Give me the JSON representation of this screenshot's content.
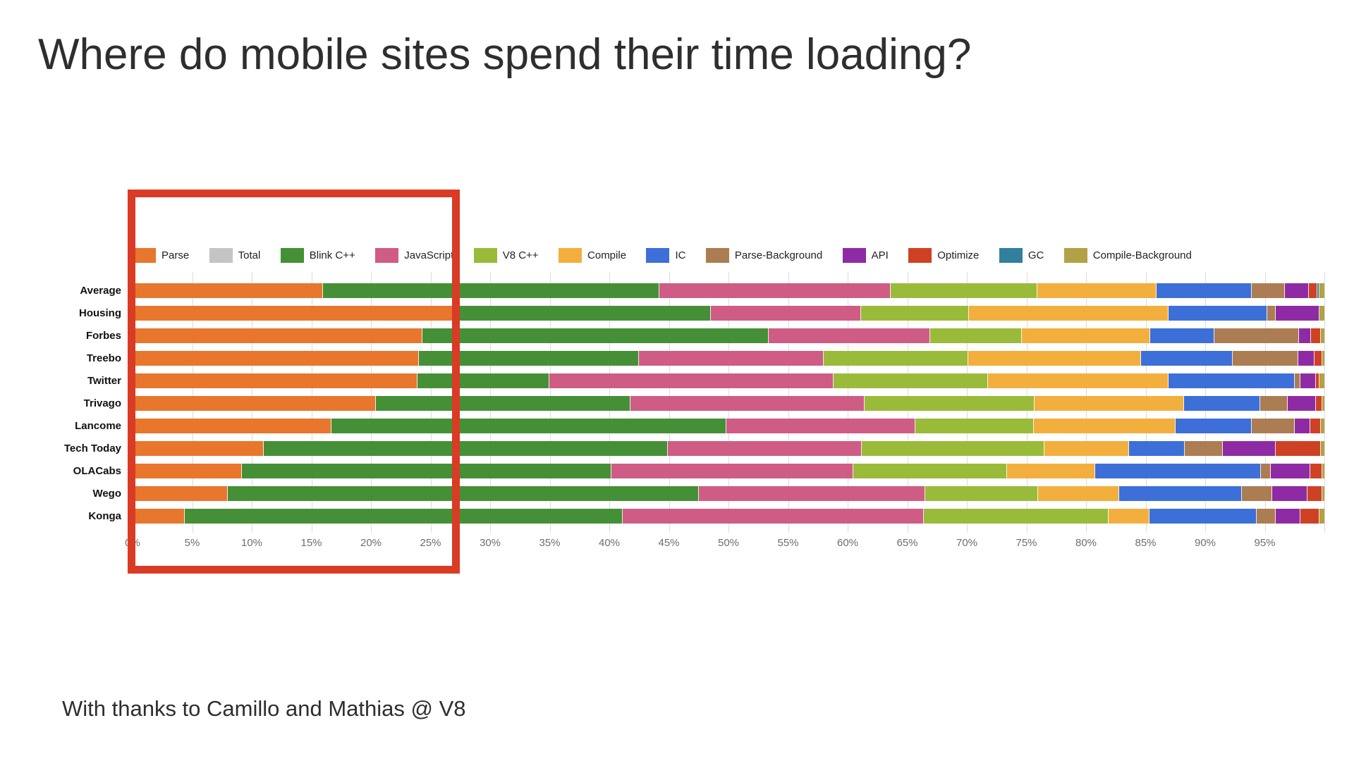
{
  "title": "Where do mobile sites spend their time loading?",
  "footer": "With thanks to Camillo and Mathias @ V8",
  "highlight_box": {
    "color": "#D93B25",
    "x_start_pct": 0,
    "x_end_pct": 27.4
  },
  "chart_data": {
    "type": "bar",
    "variant": "horizontal-100pct-stacked",
    "title": "",
    "xlabel": "",
    "ylabel": "",
    "xlim": [
      0,
      100
    ],
    "grid": true,
    "legend_position": "top",
    "x_ticks": [
      "0%",
      "5%",
      "10%",
      "15%",
      "20%",
      "25%",
      "30%",
      "35%",
      "40%",
      "45%",
      "50%",
      "55%",
      "60%",
      "65%",
      "70%",
      "75%",
      "80%",
      "85%",
      "90%",
      "95%"
    ],
    "categories": [
      "Average",
      "Housing",
      "Forbes",
      "Treebo",
      "Twitter",
      "Trivago",
      "Lancome",
      "Tech Today",
      "OLACabs",
      "Wego",
      "Konga"
    ],
    "series": [
      {
        "name": "Parse",
        "color": "#E8762D",
        "values": [
          16.0,
          27.4,
          24.3,
          24.0,
          23.9,
          20.4,
          16.7,
          11.0,
          9.2,
          8.0,
          4.4
        ]
      },
      {
        "name": "Total",
        "color": "#C4C4C4",
        "values": [
          0,
          0,
          0,
          0,
          0,
          0,
          0,
          0,
          0,
          0,
          0
        ]
      },
      {
        "name": "Blink C++",
        "color": "#459036",
        "values": [
          28.2,
          21.1,
          29.1,
          18.5,
          11.1,
          21.4,
          33.1,
          33.9,
          31.0,
          39.5,
          36.7
        ]
      },
      {
        "name": "JavaScript",
        "color": "#CF5C85",
        "values": [
          19.4,
          12.6,
          13.5,
          15.5,
          23.8,
          19.6,
          15.9,
          16.3,
          20.3,
          19.0,
          25.3
        ]
      },
      {
        "name": "V8 C++",
        "color": "#9ABB3A",
        "values": [
          12.3,
          9.1,
          7.7,
          12.1,
          13.0,
          14.3,
          9.9,
          15.3,
          12.9,
          9.5,
          15.5
        ]
      },
      {
        "name": "Compile",
        "color": "#F3AF3D",
        "values": [
          10.0,
          16.7,
          10.8,
          14.5,
          15.1,
          12.5,
          11.9,
          7.1,
          7.4,
          6.8,
          3.4
        ]
      },
      {
        "name": "IC",
        "color": "#3D6FD8",
        "values": [
          8.0,
          8.3,
          5.4,
          7.7,
          10.6,
          6.4,
          6.4,
          4.7,
          13.9,
          10.3,
          9.0
        ]
      },
      {
        "name": "Parse-Background",
        "color": "#AC7D52",
        "values": [
          2.8,
          0.7,
          7.1,
          5.5,
          0.5,
          2.3,
          3.6,
          3.2,
          0.8,
          2.5,
          1.6
        ]
      },
      {
        "name": "API",
        "color": "#8E2BA4",
        "values": [
          2.0,
          3.7,
          1.0,
          1.4,
          1.3,
          2.4,
          1.3,
          4.4,
          3.3,
          3.0,
          2.1
        ]
      },
      {
        "name": "Optimize",
        "color": "#CF4125",
        "values": [
          0.7,
          0.0,
          0.8,
          0.6,
          0.3,
          0.5,
          0.9,
          3.8,
          1.0,
          1.2,
          1.6
        ]
      },
      {
        "name": "GC",
        "color": "#337F9E",
        "values": [
          0.2,
          0.0,
          0.0,
          0.0,
          0.0,
          0.0,
          0.0,
          0.0,
          0.0,
          0.0,
          0.0
        ]
      },
      {
        "name": "Compile-Background",
        "color": "#B3A145",
        "values": [
          0.4,
          0.4,
          0.3,
          0.2,
          0.4,
          0.2,
          0.3,
          0.3,
          0.2,
          0.2,
          0.4
        ]
      }
    ]
  }
}
